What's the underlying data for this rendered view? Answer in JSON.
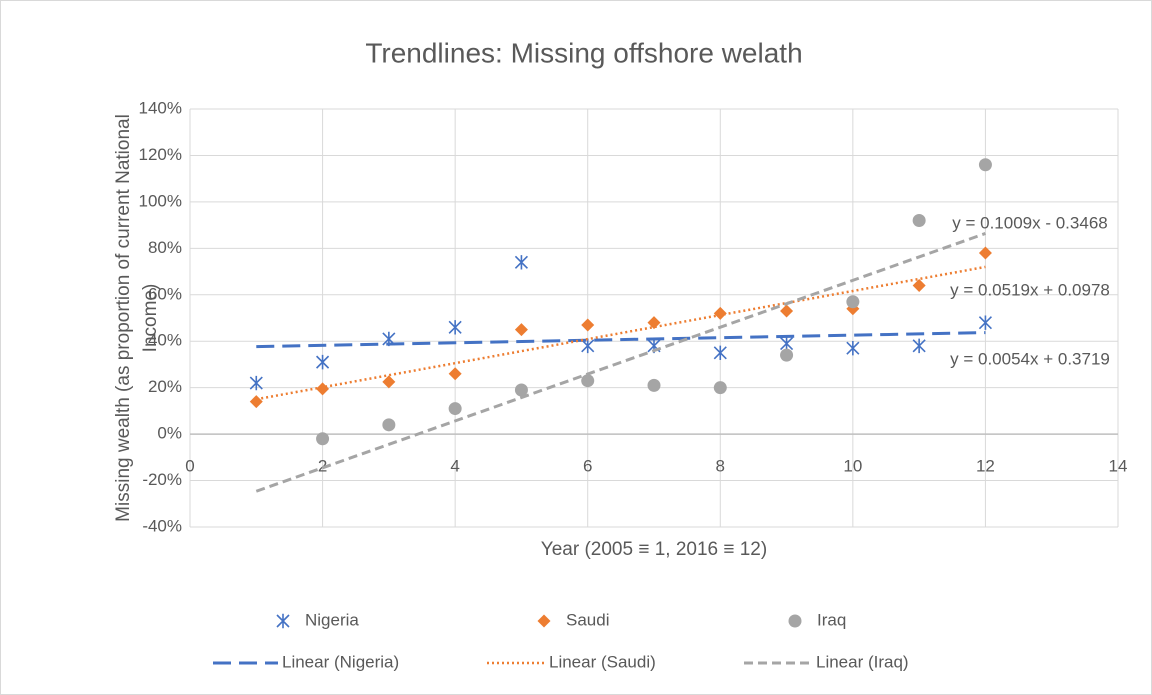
{
  "chart_data": {
    "type": "scatter",
    "title": "Trendlines: Missing offshore welath",
    "xlabel": "Year (2005 ≡ 1, 2016 ≡ 12)",
    "ylabel": "Missing wealth (as proportion of current National Income)",
    "x": [
      1,
      2,
      3,
      4,
      5,
      6,
      7,
      8,
      9,
      10,
      11,
      12
    ],
    "series": [
      {
        "name": "Nigeria",
        "color": "#4472c4",
        "marker": "asterisk",
        "values": [
          22,
          31,
          41,
          46,
          74,
          38,
          38,
          35,
          39,
          37,
          38,
          48
        ]
      },
      {
        "name": "Saudi",
        "color": "#ed7d31",
        "marker": "diamond",
        "values": [
          14,
          19.5,
          22.5,
          26,
          45,
          47,
          48,
          52,
          53,
          54,
          64,
          78
        ]
      },
      {
        "name": "Iraq",
        "color": "#a5a5a5",
        "marker": "circle",
        "values": [
          null,
          -2,
          4,
          11,
          19,
          23,
          21,
          20,
          34,
          57,
          92,
          116
        ]
      }
    ],
    "trendlines": [
      {
        "name": "Linear (Nigeria)",
        "color": "#4472c4",
        "dash": "long-dash",
        "x": [
          1,
          12
        ],
        "values": [
          37.7,
          43.7
        ]
      },
      {
        "name": "Linear (Saudi)",
        "color": "#ed7d31",
        "dash": "dotted",
        "x": [
          1,
          12
        ],
        "values": [
          15,
          72
        ]
      },
      {
        "name": "Linear (Iraq)",
        "color": "#a5a5a5",
        "dash": "dashed",
        "x": [
          1,
          12
        ],
        "values": [
          -24.6,
          86.4
        ]
      }
    ],
    "annotations": [
      "y = 0.1009x - 0.3468",
      "y = 0.0519x + 0.0978",
      "y = 0.0054x + 0.3719"
    ],
    "xlim": [
      0,
      14
    ],
    "xticks": [
      0,
      2,
      4,
      6,
      8,
      10,
      12,
      14
    ],
    "ylim": [
      -40,
      140
    ],
    "yticks": [
      {
        "value": -40,
        "label": "-40%"
      },
      {
        "value": -20,
        "label": "-20%"
      },
      {
        "value": 0,
        "label": "0%"
      },
      {
        "value": 20,
        "label": "20%"
      },
      {
        "value": 40,
        "label": "40%"
      },
      {
        "value": 60,
        "label": "60%"
      },
      {
        "value": 80,
        "label": "80%"
      },
      {
        "value": 100,
        "label": "100%"
      },
      {
        "value": 120,
        "label": "120%"
      },
      {
        "value": 140,
        "label": "140%"
      }
    ],
    "grid": true,
    "legend": "bottom"
  }
}
